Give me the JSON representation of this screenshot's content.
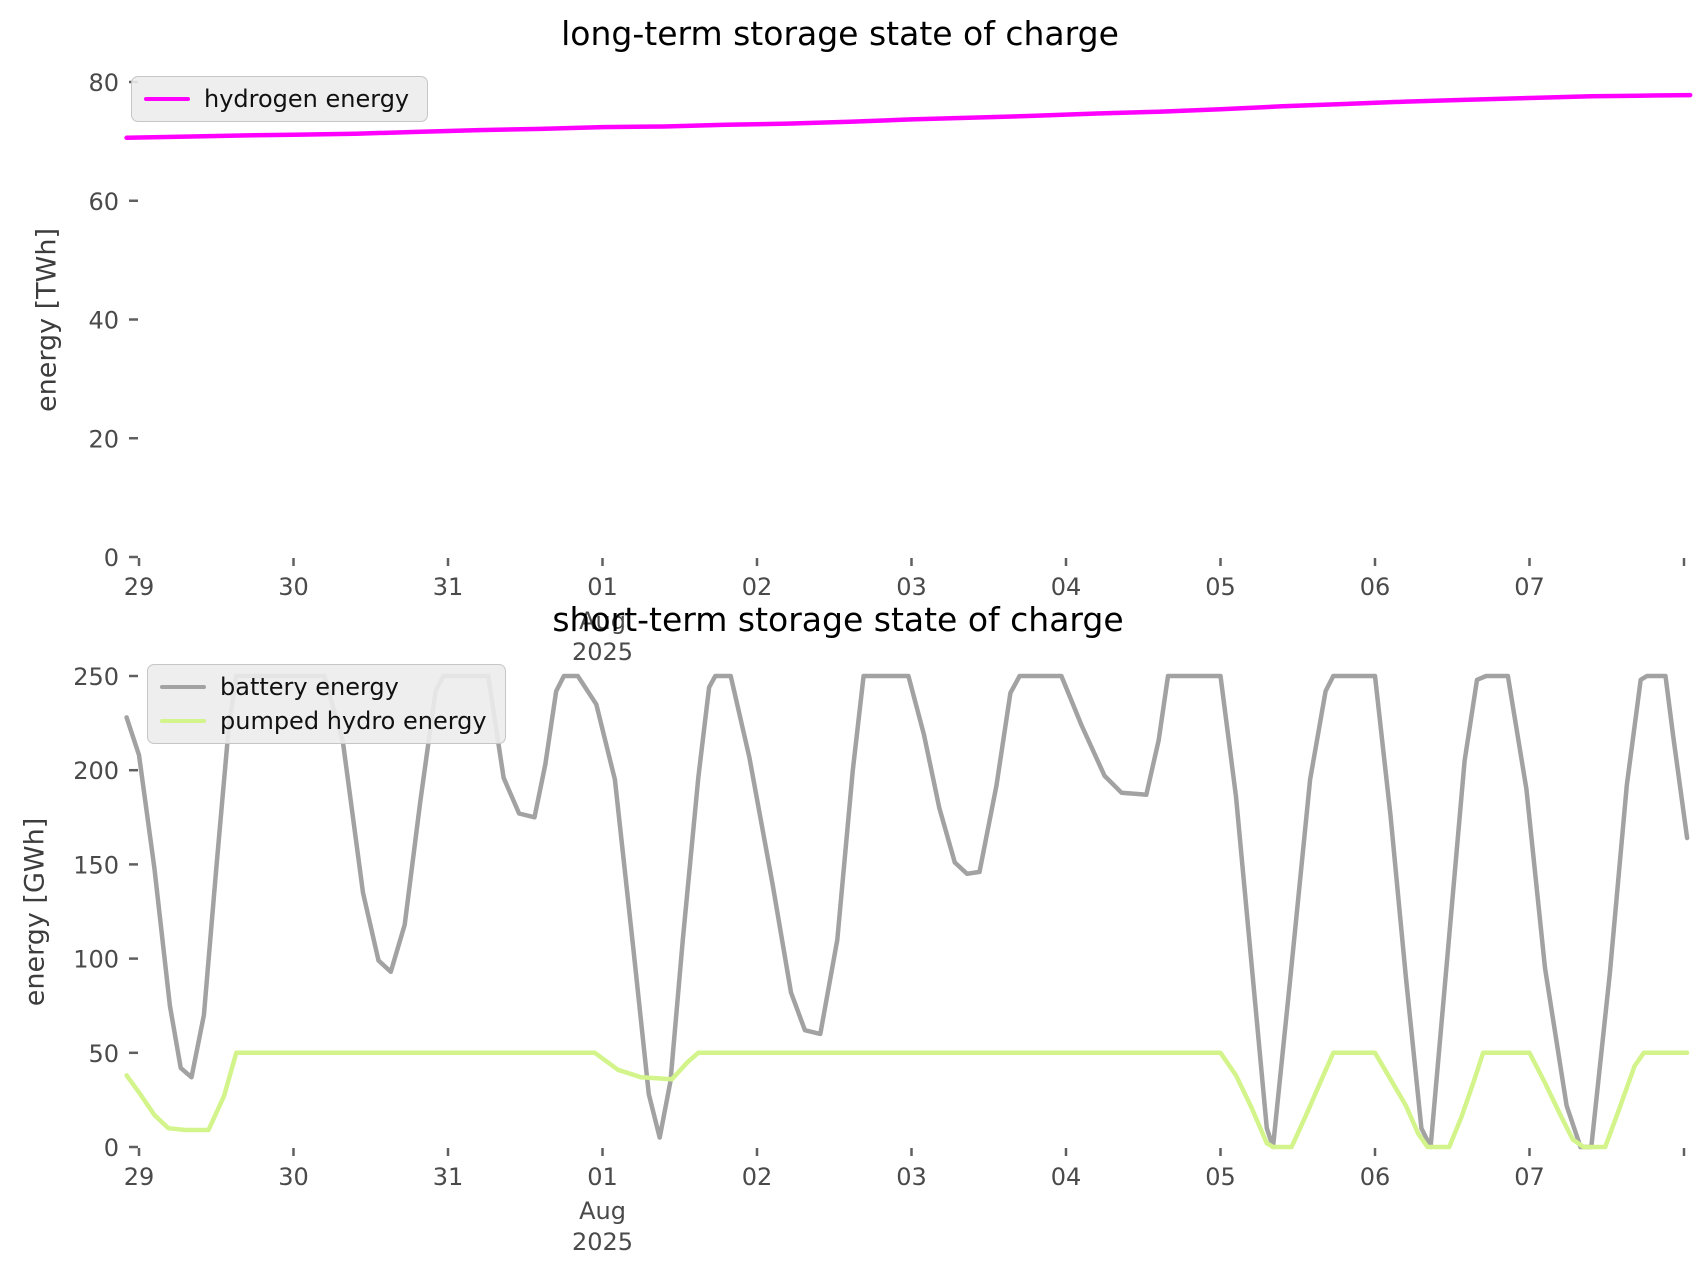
{
  "figure_background": "#ffffff",
  "chart_data": [
    {
      "type": "line",
      "title": "long-term storage state of charge",
      "ylabel": "energy [TWh]",
      "xlabel_ticks": [
        "29",
        "30",
        "31",
        "01",
        "02",
        "03",
        "04",
        "05",
        "06",
        "07",
        ""
      ],
      "xtick_days": [
        0,
        1,
        2,
        3,
        4,
        5,
        6,
        7,
        8,
        9,
        10
      ],
      "x_secondary_under_tick": 3,
      "x_secondary_lines": [
        "Aug",
        "2025"
      ],
      "x_unit": "date (days from 2025-07-29)",
      "xlim": [
        -0.08,
        10.04
      ],
      "ylim": [
        0,
        80
      ],
      "yticks": [
        0,
        20,
        40,
        60,
        80
      ],
      "grid": false,
      "legend_position": "upper left",
      "series": [
        {
          "name": "hydrogen energy",
          "color": "#ff00ff",
          "points": [
            [
              -0.08,
              70.6
            ],
            [
              0.3,
              70.8
            ],
            [
              0.7,
              71.0
            ],
            [
              1.0,
              71.1
            ],
            [
              1.4,
              71.3
            ],
            [
              1.8,
              71.6
            ],
            [
              2.2,
              71.9
            ],
            [
              2.6,
              72.1
            ],
            [
              3.0,
              72.4
            ],
            [
              3.4,
              72.5
            ],
            [
              3.8,
              72.8
            ],
            [
              4.2,
              73.0
            ],
            [
              4.6,
              73.3
            ],
            [
              5.0,
              73.7
            ],
            [
              5.4,
              74.0
            ],
            [
              5.8,
              74.3
            ],
            [
              6.2,
              74.7
            ],
            [
              6.6,
              75.0
            ],
            [
              7.0,
              75.4
            ],
            [
              7.4,
              75.9
            ],
            [
              7.8,
              76.3
            ],
            [
              8.2,
              76.7
            ],
            [
              8.6,
              77.0
            ],
            [
              9.0,
              77.3
            ],
            [
              9.4,
              77.6
            ],
            [
              9.7,
              77.7
            ],
            [
              10.04,
              77.8
            ]
          ]
        }
      ]
    },
    {
      "type": "line",
      "title": "short-term storage state of charge",
      "ylabel": "energy [GWh]",
      "xlabel_ticks": [
        "29",
        "30",
        "31",
        "01",
        "02",
        "03",
        "04",
        "05",
        "06",
        "07",
        ""
      ],
      "xtick_days": [
        0,
        1,
        2,
        3,
        4,
        5,
        6,
        7,
        8,
        9,
        10
      ],
      "x_secondary_under_tick": 3,
      "x_secondary_lines": [
        "Aug",
        "2025"
      ],
      "x_unit": "date (days from 2025-07-29)",
      "xlim": [
        -0.08,
        10.04
      ],
      "ylim": [
        0,
        250
      ],
      "yticks": [
        0,
        50,
        100,
        150,
        200,
        250
      ],
      "grid": false,
      "legend_position": "upper left",
      "series": [
        {
          "name": "battery energy",
          "color": "#a2a2a2",
          "points": [
            [
              -0.08,
              228
            ],
            [
              0,
              208
            ],
            [
              0.1,
              148
            ],
            [
              0.2,
              75
            ],
            [
              0.27,
              42
            ],
            [
              0.34,
              37
            ],
            [
              0.42,
              70
            ],
            [
              0.5,
              148
            ],
            [
              0.58,
              222
            ],
            [
              0.63,
              250
            ],
            [
              1.2,
              250
            ],
            [
              1.32,
              215
            ],
            [
              1.45,
              135
            ],
            [
              1.55,
              99
            ],
            [
              1.63,
              93
            ],
            [
              1.72,
              118
            ],
            [
              1.82,
              183
            ],
            [
              1.92,
              242
            ],
            [
              1.97,
              250
            ],
            [
              2.26,
              250
            ],
            [
              2.36,
              196
            ],
            [
              2.46,
              177
            ],
            [
              2.56,
              175
            ],
            [
              2.63,
              203
            ],
            [
              2.7,
              242
            ],
            [
              2.75,
              250
            ],
            [
              2.84,
              250
            ],
            [
              2.96,
              235
            ],
            [
              3.08,
              195
            ],
            [
              3.2,
              105
            ],
            [
              3.3,
              28
            ],
            [
              3.37,
              5
            ],
            [
              3.44,
              35
            ],
            [
              3.52,
              110
            ],
            [
              3.62,
              196
            ],
            [
              3.69,
              244
            ],
            [
              3.73,
              250
            ],
            [
              3.83,
              250
            ],
            [
              3.95,
              207
            ],
            [
              4.1,
              140
            ],
            [
              4.22,
              82
            ],
            [
              4.31,
              62
            ],
            [
              4.41,
              60
            ],
            [
              4.52,
              110
            ],
            [
              4.62,
              200
            ],
            [
              4.69,
              250
            ],
            [
              4.98,
              250
            ],
            [
              5.08,
              219
            ],
            [
              5.18,
              180
            ],
            [
              5.28,
              151
            ],
            [
              5.36,
              145
            ],
            [
              5.44,
              146
            ],
            [
              5.55,
              192
            ],
            [
              5.64,
              241
            ],
            [
              5.7,
              250
            ],
            [
              5.97,
              250
            ],
            [
              6.1,
              224
            ],
            [
              6.25,
              197
            ],
            [
              6.36,
              188
            ],
            [
              6.52,
              187
            ],
            [
              6.6,
              216
            ],
            [
              6.66,
              250
            ],
            [
              7.0,
              250
            ],
            [
              7.1,
              186
            ],
            [
              7.2,
              98
            ],
            [
              7.3,
              10
            ],
            [
              7.34,
              0
            ],
            [
              7.45,
              88
            ],
            [
              7.58,
              195
            ],
            [
              7.68,
              242
            ],
            [
              7.73,
              250
            ],
            [
              8.0,
              250
            ],
            [
              8.1,
              176
            ],
            [
              8.2,
              90
            ],
            [
              8.3,
              10
            ],
            [
              8.36,
              0
            ],
            [
              8.48,
              112
            ],
            [
              8.58,
              205
            ],
            [
              8.66,
              248
            ],
            [
              8.72,
              250
            ],
            [
              8.86,
              250
            ],
            [
              8.98,
              190
            ],
            [
              9.1,
              95
            ],
            [
              9.24,
              22
            ],
            [
              9.33,
              0
            ],
            [
              9.4,
              0
            ],
            [
              9.52,
              92
            ],
            [
              9.63,
              192
            ],
            [
              9.72,
              248
            ],
            [
              9.76,
              250
            ],
            [
              9.88,
              250
            ],
            [
              9.93,
              218
            ],
            [
              10.02,
              164
            ]
          ]
        },
        {
          "name": "pumped hydro energy",
          "color": "#d2f48a",
          "points": [
            [
              -0.08,
              38
            ],
            [
              0.0,
              29
            ],
            [
              0.1,
              17
            ],
            [
              0.19,
              10
            ],
            [
              0.3,
              9
            ],
            [
              0.45,
              9
            ],
            [
              0.55,
              27
            ],
            [
              0.63,
              50
            ],
            [
              2.95,
              50
            ],
            [
              3.1,
              41
            ],
            [
              3.25,
              37
            ],
            [
              3.45,
              36
            ],
            [
              3.55,
              45
            ],
            [
              3.62,
              50
            ],
            [
              7.0,
              50
            ],
            [
              7.1,
              38
            ],
            [
              7.2,
              21
            ],
            [
              7.3,
              2
            ],
            [
              7.34,
              0
            ],
            [
              7.46,
              0
            ],
            [
              7.56,
              18
            ],
            [
              7.66,
              37
            ],
            [
              7.73,
              50
            ],
            [
              8.0,
              50
            ],
            [
              8.1,
              36
            ],
            [
              8.2,
              22
            ],
            [
              8.28,
              7
            ],
            [
              8.34,
              0
            ],
            [
              8.48,
              0
            ],
            [
              8.56,
              16
            ],
            [
              8.64,
              35
            ],
            [
              8.7,
              50
            ],
            [
              9.0,
              50
            ],
            [
              9.1,
              34
            ],
            [
              9.2,
              17
            ],
            [
              9.28,
              4
            ],
            [
              9.35,
              0
            ],
            [
              9.49,
              0
            ],
            [
              9.58,
              20
            ],
            [
              9.68,
              43
            ],
            [
              9.74,
              50
            ],
            [
              10.02,
              50
            ]
          ]
        }
      ]
    }
  ],
  "style": {
    "tick_color": "#4a4a4a",
    "tick_mark_color": "#606060",
    "title_color": "#000000",
    "legend_background": "#ececec"
  }
}
